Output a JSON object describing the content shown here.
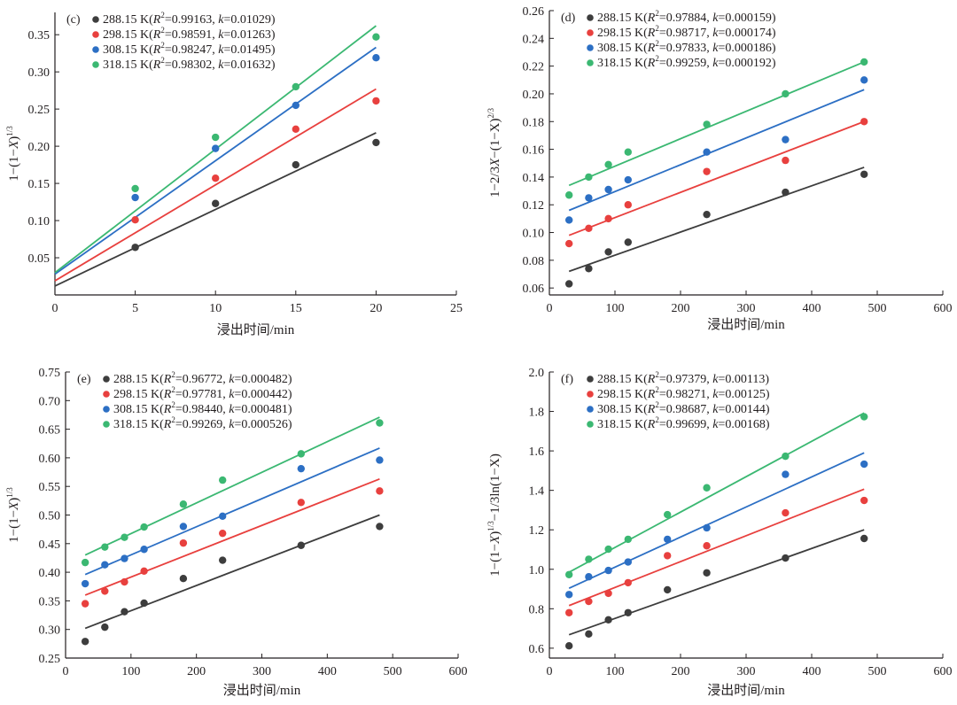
{
  "chart_data": [
    {
      "type": "scatter",
      "panel_label": "(c)",
      "xlabel": "浸出时间/min",
      "ylabel": "1−(1−X)^1/3",
      "ylabel_main": "1−(1−",
      "ylabel_var": "X",
      "ylabel_close": ")",
      "ylabel_sup": "1/3",
      "xlim": [
        0,
        25
      ],
      "ylim": [
        0,
        0.38
      ],
      "xticks": [
        "0",
        "5",
        "10",
        "15",
        "20",
        "25"
      ],
      "xtick_values": [
        0,
        5,
        10,
        15,
        20,
        25
      ],
      "yticks": [
        "0.05",
        "0.10",
        "0.15",
        "0.20",
        "0.25",
        "0.30",
        "0.35"
      ],
      "ytick_values": [
        0.05,
        0.1,
        0.15,
        0.2,
        0.25,
        0.3,
        0.35
      ],
      "legend_position": "top-left",
      "series": [
        {
          "name": "288.15 K",
          "temp": "288.15 K(",
          "r2": "=0.99163, ",
          "k": "=0.01029)",
          "color": "#3d3d3d",
          "x": [
            5,
            10,
            15,
            20
          ],
          "y": [
            0.064,
            0.123,
            0.175,
            0.205
          ],
          "fit": [
            [
              0,
              0.012
            ],
            [
              20,
              0.218
            ]
          ]
        },
        {
          "name": "298.15 K",
          "temp": "298.15 K(",
          "r2": "=0.98591, ",
          "k": "=0.01263)",
          "color": "#e8403e",
          "x": [
            5,
            10,
            15,
            20
          ],
          "y": [
            0.101,
            0.157,
            0.223,
            0.261
          ],
          "fit": [
            [
              0,
              0.019
            ],
            [
              20,
              0.277
            ]
          ]
        },
        {
          "name": "308.15 K",
          "temp": "308.15 K(",
          "r2": "=0.98247, ",
          "k": "=0.01495)",
          "color": "#2c6fc4",
          "x": [
            5,
            10,
            15,
            20
          ],
          "y": [
            0.131,
            0.197,
            0.255,
            0.319
          ],
          "fit": [
            [
              0,
              0.028
            ],
            [
              20,
              0.333
            ]
          ]
        },
        {
          "name": "318.15 K",
          "temp": "318.15 K(",
          "r2": "=0.98302, ",
          "k": "=0.01632)",
          "color": "#3bb872",
          "x": [
            5,
            10,
            15,
            20
          ],
          "y": [
            0.143,
            0.212,
            0.28,
            0.347
          ],
          "fit": [
            [
              0,
              0.03
            ],
            [
              20,
              0.362
            ]
          ]
        }
      ]
    },
    {
      "type": "scatter",
      "panel_label": "(d)",
      "xlabel": "浸出时间/min",
      "ylabel": "1−2/3X−(1−X)^2/3",
      "ylabel_main": "1−2/3",
      "ylabel_var": "X",
      "ylabel_close": "−(1−X)",
      "ylabel_sup": "2/3",
      "xlim": [
        0,
        600
      ],
      "ylim": [
        0.055,
        0.26
      ],
      "xticks": [
        "0",
        "100",
        "200",
        "300",
        "400",
        "500",
        "600"
      ],
      "xtick_values": [
        0,
        100,
        200,
        300,
        400,
        500,
        600
      ],
      "yticks": [
        "0.06",
        "0.08",
        "0.10",
        "0.12",
        "0.14",
        "0.16",
        "0.18",
        "0.20",
        "0.22",
        "0.24",
        "0.26"
      ],
      "ytick_values": [
        0.06,
        0.08,
        0.1,
        0.12,
        0.14,
        0.16,
        0.18,
        0.2,
        0.22,
        0.24,
        0.26
      ],
      "legend_position": "top-left",
      "series": [
        {
          "name": "288.15 K",
          "temp": "288.15 K(",
          "r2": "=0.97884, ",
          "k": "=0.000159)",
          "color": "#3d3d3d",
          "x": [
            30,
            60,
            90,
            120,
            240,
            360,
            480
          ],
          "y": [
            0.063,
            0.074,
            0.086,
            0.093,
            0.113,
            0.129,
            0.142
          ],
          "fit": [
            [
              30,
              0.072
            ],
            [
              480,
              0.147
            ]
          ]
        },
        {
          "name": "298.15 K",
          "temp": "298.15 K(",
          "r2": "=0.98717, ",
          "k": "=0.000174)",
          "color": "#e8403e",
          "x": [
            30,
            60,
            90,
            120,
            240,
            360,
            480
          ],
          "y": [
            0.092,
            0.103,
            0.11,
            0.12,
            0.144,
            0.152,
            0.18
          ],
          "fit": [
            [
              30,
              0.098
            ],
            [
              480,
              0.18
            ]
          ]
        },
        {
          "name": "308.15 K",
          "temp": "308.15 K(",
          "r2": "=0.97833, ",
          "k": "=0.000186)",
          "color": "#2c6fc4",
          "x": [
            30,
            60,
            90,
            120,
            240,
            360,
            480
          ],
          "y": [
            0.109,
            0.125,
            0.131,
            0.138,
            0.158,
            0.167,
            0.21
          ],
          "fit": [
            [
              30,
              0.116
            ],
            [
              480,
              0.203
            ]
          ]
        },
        {
          "name": "318.15 K",
          "temp": "318.15 K(",
          "r2": "=0.99259, ",
          "k": "=0.000192)",
          "color": "#3bb872",
          "x": [
            30,
            60,
            90,
            120,
            240,
            360,
            480
          ],
          "y": [
            0.127,
            0.14,
            0.149,
            0.158,
            0.178,
            0.2,
            0.223
          ],
          "fit": [
            [
              30,
              0.134
            ],
            [
              480,
              0.223
            ]
          ]
        }
      ]
    },
    {
      "type": "scatter",
      "panel_label": "(e)",
      "xlabel": "浸出时间/min",
      "ylabel": "1−(1−X)^1/3",
      "ylabel_main": "1−(1−",
      "ylabel_var": "X",
      "ylabel_close": ")",
      "ylabel_sup": "1/3",
      "xlim": [
        0,
        600
      ],
      "ylim": [
        0.25,
        0.75
      ],
      "xticks": [
        "0",
        "100",
        "200",
        "300",
        "400",
        "500",
        "600"
      ],
      "xtick_values": [
        0,
        100,
        200,
        300,
        400,
        500,
        600
      ],
      "yticks": [
        "0.25",
        "0.30",
        "0.35",
        "0.40",
        "0.45",
        "0.50",
        "0.55",
        "0.60",
        "0.65",
        "0.70",
        "0.75"
      ],
      "ytick_values": [
        0.25,
        0.3,
        0.35,
        0.4,
        0.45,
        0.5,
        0.55,
        0.6,
        0.65,
        0.7,
        0.75
      ],
      "legend_position": "top-left",
      "series": [
        {
          "name": "288.15 K",
          "temp": "288.15 K(",
          "r2": "=0.96772, ",
          "k": "=0.000482)",
          "color": "#3d3d3d",
          "x": [
            30,
            60,
            90,
            120,
            180,
            240,
            360,
            480
          ],
          "y": [
            0.279,
            0.304,
            0.331,
            0.346,
            0.389,
            0.421,
            0.447,
            0.48
          ],
          "fit": [
            [
              30,
              0.302
            ],
            [
              480,
              0.5
            ]
          ]
        },
        {
          "name": "298.15 K",
          "temp": "298.15 K(",
          "r2": "=0.97781, ",
          "k": "=0.000442)",
          "color": "#e8403e",
          "x": [
            30,
            60,
            90,
            120,
            180,
            240,
            360,
            480
          ],
          "y": [
            0.345,
            0.367,
            0.383,
            0.402,
            0.451,
            0.468,
            0.522,
            0.542
          ],
          "fit": [
            [
              30,
              0.36
            ],
            [
              480,
              0.563
            ]
          ]
        },
        {
          "name": "308.15 K",
          "temp": "308.15 K(",
          "r2": "=0.98440, ",
          "k": "=0.000481)",
          "color": "#2c6fc4",
          "x": [
            30,
            60,
            90,
            120,
            180,
            240,
            360,
            480
          ],
          "y": [
            0.38,
            0.413,
            0.424,
            0.44,
            0.48,
            0.498,
            0.581,
            0.596
          ],
          "fit": [
            [
              30,
              0.396
            ],
            [
              480,
              0.617
            ]
          ]
        },
        {
          "name": "318.15 K",
          "temp": "318.15 K(",
          "r2": "=0.99269, ",
          "k": "=0.000526)",
          "color": "#3bb872",
          "x": [
            30,
            60,
            90,
            120,
            180,
            240,
            360,
            480
          ],
          "y": [
            0.417,
            0.444,
            0.461,
            0.479,
            0.519,
            0.561,
            0.607,
            0.661
          ],
          "fit": [
            [
              30,
              0.43
            ],
            [
              480,
              0.671
            ]
          ]
        }
      ]
    },
    {
      "type": "scatter",
      "panel_label": "(f)",
      "xlabel": "浸出时间/min",
      "ylabel": "1−(1−X)^1/3−1/3ln(1−X)",
      "ylabel_main": "1−(1−",
      "ylabel_var": "X",
      "ylabel_close": ")",
      "ylabel_sup": "1/3",
      "ylabel_tail": "−1/3ln(1−X)",
      "xlim": [
        0,
        600
      ],
      "ylim": [
        0.55,
        2.0
      ],
      "xticks": [
        "0",
        "100",
        "200",
        "300",
        "400",
        "500",
        "600"
      ],
      "xtick_values": [
        0,
        100,
        200,
        300,
        400,
        500,
        600
      ],
      "yticks": [
        "0.6",
        "0.8",
        "1.0",
        "1.2",
        "1.4",
        "1.6",
        "1.8",
        "2.0"
      ],
      "ytick_values": [
        0.6,
        0.8,
        1.0,
        1.2,
        1.4,
        1.6,
        1.8,
        2.0
      ],
      "legend_position": "top-left",
      "series": [
        {
          "name": "288.15 K",
          "temp": "288.15 K(",
          "r2": "=0.97379, ",
          "k": "=0.00113)",
          "color": "#3d3d3d",
          "x": [
            30,
            60,
            90,
            120,
            180,
            240,
            360,
            480
          ],
          "y": [
            0.612,
            0.672,
            0.744,
            0.78,
            0.896,
            0.982,
            1.057,
            1.156
          ],
          "fit": [
            [
              30,
              0.668
            ],
            [
              480,
              1.2
            ]
          ]
        },
        {
          "name": "298.15 K",
          "temp": "298.15 K(",
          "r2": "=0.98271, ",
          "k": "=0.00125)",
          "color": "#e8403e",
          "x": [
            30,
            60,
            90,
            120,
            180,
            240,
            360,
            480
          ],
          "y": [
            0.78,
            0.837,
            0.878,
            0.932,
            1.069,
            1.119,
            1.286,
            1.349
          ],
          "fit": [
            [
              30,
              0.816
            ],
            [
              480,
              1.406
            ]
          ]
        },
        {
          "name": "308.15 K",
          "temp": "308.15 K(",
          "r2": "=0.98687, ",
          "k": "=0.00144)",
          "color": "#2c6fc4",
          "x": [
            30,
            60,
            90,
            120,
            180,
            240,
            360,
            480
          ],
          "y": [
            0.872,
            0.962,
            0.994,
            1.037,
            1.152,
            1.21,
            1.481,
            1.533
          ],
          "fit": [
            [
              30,
              0.904
            ],
            [
              480,
              1.59
            ]
          ]
        },
        {
          "name": "318.15 K",
          "temp": "318.15 K(",
          "r2": "=0.99699, ",
          "k": "=0.00168)",
          "color": "#3bb872",
          "x": [
            30,
            60,
            90,
            120,
            180,
            240,
            360,
            480
          ],
          "y": [
            0.973,
            1.051,
            1.102,
            1.152,
            1.277,
            1.413,
            1.573,
            1.773
          ],
          "fit": [
            [
              30,
              0.985
            ],
            [
              480,
              1.792
            ]
          ]
        }
      ]
    }
  ]
}
